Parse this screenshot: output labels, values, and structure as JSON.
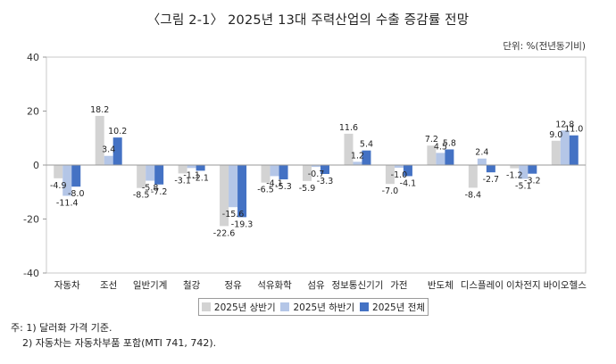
{
  "title": "〈그림 2-1〉 2025년 13대 주력산업의 수출 증감률 전망",
  "unit_label": "단위: %(전년동기비)",
  "notes": [
    "주: 1) 달러화 가격 기준.",
    "2) 자동차는 자동차부품 포함(MTI 741, 742)."
  ],
  "colors": {
    "first_half": "#d3d3d3",
    "second_half": "#b4c6e7",
    "full_year": "#4472c4"
  },
  "chart_data": {
    "type": "bar",
    "title": "〈그림 2-1〉 2025년 13대 주력산업의 수출 증감률 전망",
    "ylim": [
      -40,
      40
    ],
    "yticks": [
      40,
      20,
      0,
      -20,
      -40
    ],
    "grid": false,
    "legend_position": "bottom",
    "categories": [
      "자동차",
      "조선",
      "일반기계",
      "철강",
      "정유",
      "석유화학",
      "섬유",
      "정보통신기기",
      "가전",
      "반도체",
      "디스플레이",
      "이차전지",
      "바이오헬스"
    ],
    "series": [
      {
        "name": "2025년 상반기",
        "values": [
          -4.9,
          18.2,
          -8.5,
          -3.1,
          -22.6,
          -6.5,
          -5.9,
          11.6,
          -7.0,
          7.2,
          -8.4,
          -1.2,
          9.0
        ]
      },
      {
        "name": "2025년 하반기",
        "values": [
          -11.4,
          3.4,
          -5.8,
          -1.1,
          -15.6,
          -4.1,
          -0.7,
          1.2,
          -1.0,
          4.5,
          2.4,
          -5.1,
          12.8
        ]
      },
      {
        "name": "2025년 전체",
        "values": [
          -8.0,
          10.2,
          -7.2,
          -2.1,
          -19.3,
          -5.3,
          -3.3,
          5.4,
          -4.1,
          5.8,
          -2.7,
          -3.2,
          11.0
        ]
      }
    ]
  }
}
